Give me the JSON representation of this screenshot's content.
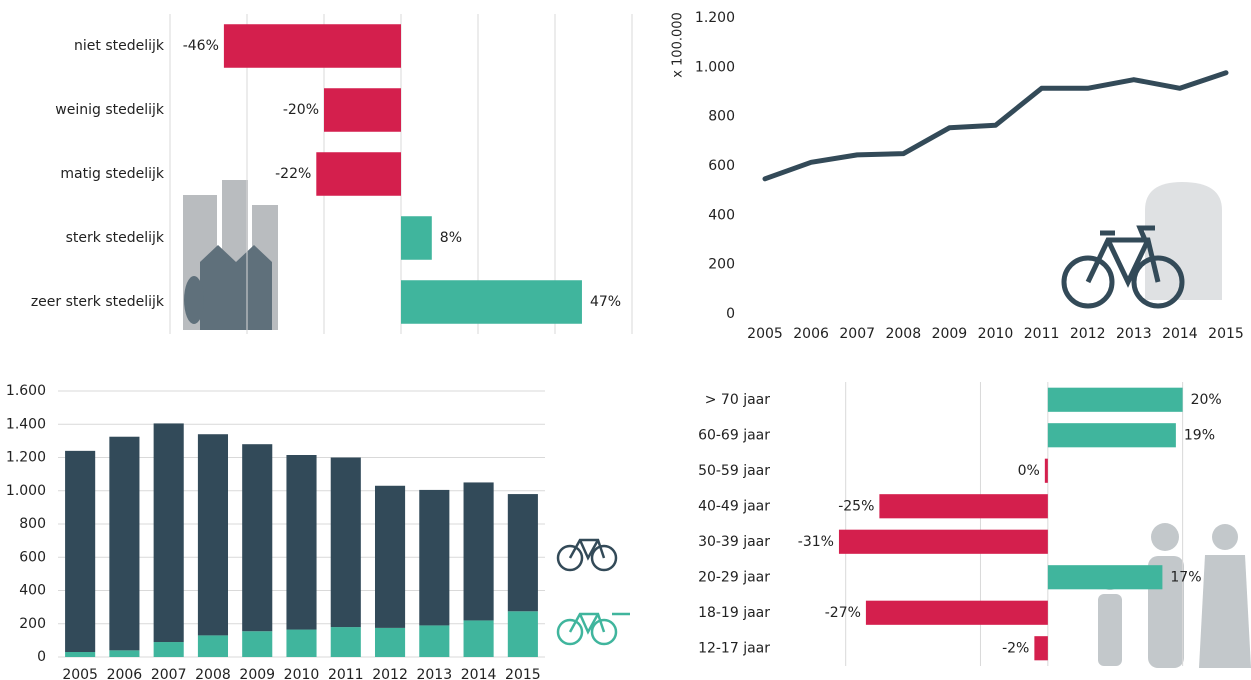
{
  "chart_data": [
    {
      "type": "hbar",
      "categories": [
        "niet stedelijk",
        "weinig stedelijk",
        "matig stedelijk",
        "sterk stedelijk",
        "zeer sterk stedelijk"
      ],
      "values": [
        -46,
        -20,
        -22,
        8,
        47
      ],
      "value_labels": [
        "-46%",
        "-20%",
        "-22%",
        "8%",
        "47%"
      ],
      "colors": {
        "negative": "#d41f4d",
        "positive": "#40b59d"
      },
      "xlim": [
        -60,
        60
      ],
      "xticks": [
        -60,
        -40,
        -20,
        0,
        20,
        40,
        60
      ],
      "grid": true
    },
    {
      "type": "line",
      "ylabel": "x 100.000",
      "categories": [
        "2005",
        "2006",
        "2007",
        "2008",
        "2009",
        "2010",
        "2011",
        "2012",
        "2013",
        "2014",
        "2015"
      ],
      "values": [
        548,
        615,
        645,
        650,
        755,
        765,
        915,
        915,
        950,
        915,
        978
      ],
      "color": "#334a58",
      "ylim": [
        0,
        1200
      ],
      "yticks": [
        0,
        200,
        400,
        600,
        800,
        {
          "value": 1000,
          "label": "1.000"
        },
        {
          "value": 1200,
          "label": "1.200"
        }
      ]
    },
    {
      "type": "stacked_bar",
      "categories": [
        "2005",
        "2006",
        "2007",
        "2008",
        "2009",
        "2010",
        "2011",
        "2012",
        "2013",
        "2014",
        "2015"
      ],
      "series": [
        {
          "color": "#40b59d",
          "values": [
            30,
            40,
            90,
            130,
            155,
            165,
            180,
            175,
            190,
            220,
            275
          ]
        },
        {
          "color": "#324a59",
          "values": [
            1210,
            1285,
            1315,
            1210,
            1125,
            1050,
            1020,
            855,
            815,
            830,
            705
          ]
        }
      ],
      "ylim": [
        0,
        1600
      ],
      "yticks": [
        0,
        200,
        400,
        600,
        800,
        {
          "value": 1000,
          "label": "1.000"
        },
        {
          "value": 1200,
          "label": "1.200"
        },
        {
          "value": 1400,
          "label": "1.400"
        },
        {
          "value": 1600,
          "label": "1.600"
        }
      ],
      "grid": true
    },
    {
      "type": "hbar",
      "categories": [
        "> 70 jaar",
        "60-69 jaar",
        "50-59 jaar",
        "40-49 jaar",
        "30-39 jaar",
        "20-29 jaar",
        "18-19 jaar",
        "12-17 jaar"
      ],
      "values": [
        20,
        19,
        0,
        -25,
        -31,
        17,
        -27,
        -2
      ],
      "value_labels": [
        "20%",
        "19%",
        "0%",
        "-25%",
        "-31%",
        "17%",
        "-27%",
        "-2%"
      ],
      "colors": {
        "negative": "#d41f4d",
        "positive": "#40b59d"
      },
      "xlim": [
        -35,
        30
      ],
      "xticks": [
        -30,
        -10,
        0,
        20
      ],
      "grid": true
    }
  ]
}
